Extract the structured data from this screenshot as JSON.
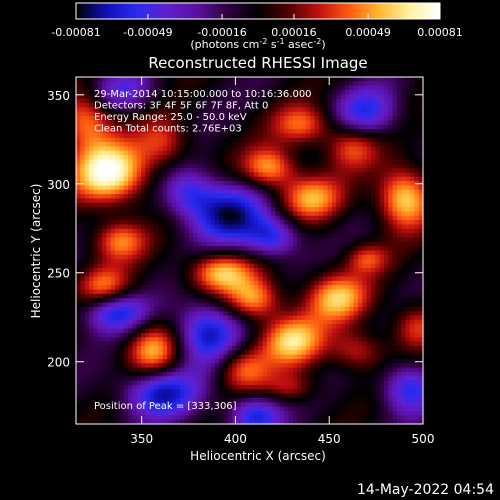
{
  "chart_data": {
    "type": "heatmap",
    "title": "Reconstructed RHESSI Image",
    "xlabel": "Heliocentric X (arcsec)",
    "ylabel": "Heliocentric Y (arcsec)",
    "xlim": [
      315,
      500
    ],
    "ylim": [
      165,
      360
    ],
    "xticks": [
      350,
      400,
      450,
      500
    ],
    "yticks": [
      200,
      250,
      300,
      350
    ],
    "colorbar": {
      "ticks": [
        -0.00081,
        -0.00049,
        -0.00016,
        0.00016,
        0.00049,
        0.00081
      ],
      "tick_labels": [
        "-0.00081",
        "-0.00049",
        "-0.00016",
        "0.00016",
        "0.00049",
        "0.00081"
      ],
      "label_prefix": "(photons cm",
      "label_sup1": "-2",
      "label_mid": " s",
      "label_sup2": "-1",
      "label_mid2": " asec",
      "label_sup3": "-2",
      "label_suffix": ")",
      "range": [
        -0.00081,
        0.00081
      ]
    },
    "annotations": [
      "29-Mar-2014 10:15:00.000 to 10:16:36.000",
      "Detectors: 3F 4F 5F 6F 7F 8F, Att 0",
      "Energy Range: 25.0 - 50.0 keV",
      "Clean   Total counts: 2.76E+03"
    ],
    "peak": {
      "text": "Position of Peak = [333,306]",
      "x": 333,
      "y": 306
    },
    "features": [
      {
        "x": 333,
        "y": 306,
        "sx": 14,
        "sy": 12,
        "amp": 1.0
      },
      {
        "x": 320,
        "y": 336,
        "sx": 10,
        "sy": 12,
        "amp": 0.65
      },
      {
        "x": 362,
        "y": 323,
        "sx": 10,
        "sy": 10,
        "amp": 0.45
      },
      {
        "x": 338,
        "y": 268,
        "sx": 10,
        "sy": 8,
        "amp": 0.6
      },
      {
        "x": 330,
        "y": 242,
        "sx": 10,
        "sy": 8,
        "amp": 0.55
      },
      {
        "x": 356,
        "y": 206,
        "sx": 10,
        "sy": 11,
        "amp": 0.68
      },
      {
        "x": 392,
        "y": 250,
        "sx": 12,
        "sy": 8,
        "amp": 0.75
      },
      {
        "x": 410,
        "y": 235,
        "sx": 10,
        "sy": 8,
        "amp": 0.65
      },
      {
        "x": 418,
        "y": 309,
        "sx": 10,
        "sy": 8,
        "amp": 0.7
      },
      {
        "x": 440,
        "y": 292,
        "sx": 12,
        "sy": 9,
        "amp": 0.65
      },
      {
        "x": 470,
        "y": 258,
        "sx": 8,
        "sy": 6,
        "amp": 0.45
      },
      {
        "x": 490,
        "y": 292,
        "sx": 10,
        "sy": 12,
        "amp": 0.85
      },
      {
        "x": 436,
        "y": 333,
        "sx": 11,
        "sy": 8,
        "amp": 0.55
      },
      {
        "x": 462,
        "y": 321,
        "sx": 10,
        "sy": 9,
        "amp": 0.5
      },
      {
        "x": 454,
        "y": 236,
        "sx": 12,
        "sy": 10,
        "amp": 0.72
      },
      {
        "x": 430,
        "y": 212,
        "sx": 12,
        "sy": 10,
        "amp": 0.78
      },
      {
        "x": 404,
        "y": 196,
        "sx": 10,
        "sy": 9,
        "amp": 0.55
      },
      {
        "x": 465,
        "y": 206,
        "sx": 10,
        "sy": 8,
        "amp": 0.45
      },
      {
        "x": 496,
        "y": 220,
        "sx": 9,
        "sy": 9,
        "amp": 0.45
      },
      {
        "x": 430,
        "y": 185,
        "sx": 10,
        "sy": 6,
        "amp": 0.35
      },
      {
        "x": 396,
        "y": 283,
        "sx": 14,
        "sy": 12,
        "amp": -0.8
      },
      {
        "x": 420,
        "y": 270,
        "sx": 10,
        "sy": 8,
        "amp": -0.65
      },
      {
        "x": 385,
        "y": 216,
        "sx": 12,
        "sy": 12,
        "amp": -0.8
      },
      {
        "x": 360,
        "y": 183,
        "sx": 14,
        "sy": 10,
        "amp": -0.8
      },
      {
        "x": 410,
        "y": 170,
        "sx": 10,
        "sy": 8,
        "amp": -0.7
      },
      {
        "x": 336,
        "y": 228,
        "sx": 12,
        "sy": 8,
        "amp": -0.7
      },
      {
        "x": 470,
        "y": 340,
        "sx": 12,
        "sy": 10,
        "amp": -0.6
      },
      {
        "x": 340,
        "y": 352,
        "sx": 12,
        "sy": 8,
        "amp": -0.45
      },
      {
        "x": 492,
        "y": 185,
        "sx": 10,
        "sy": 10,
        "amp": -0.65
      },
      {
        "x": 375,
        "y": 295,
        "sx": 10,
        "sy": 10,
        "amp": -0.55
      }
    ]
  },
  "footer": {
    "timestamp": "14-May-2022 04:54"
  },
  "colors": {
    "background": "#000000",
    "text": "#ffffff",
    "colormap": [
      "#000000",
      "#1010b8",
      "#2a2af0",
      "#6020d0",
      "#5a10a0",
      "#300040",
      "#000000",
      "#500000",
      "#c01010",
      "#ff5a10",
      "#ffb830",
      "#fff2a0",
      "#ffffff"
    ]
  }
}
